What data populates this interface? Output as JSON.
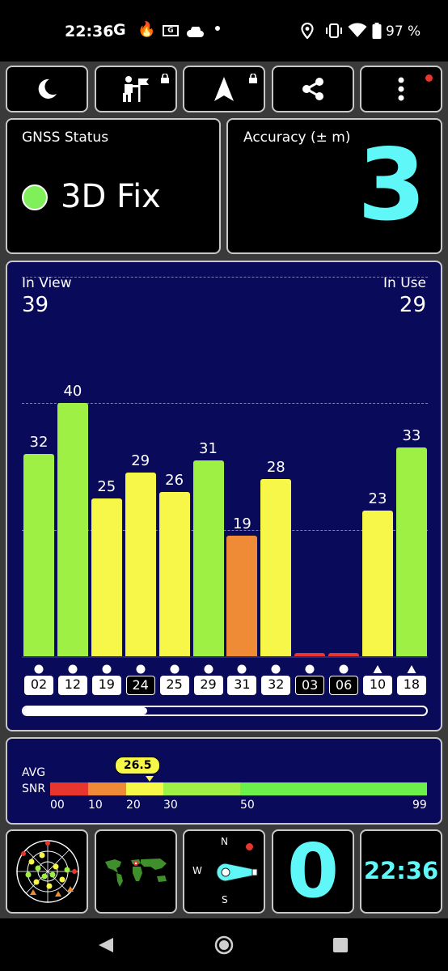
{
  "status_bar": {
    "time": "22:36",
    "battery": "97 %",
    "icons": [
      "google-icon",
      "fire-icon",
      "gmail-icon",
      "cloud-icon",
      "dot-icon",
      "location-icon",
      "vibrate-icon",
      "wifi-icon",
      "battery-icon"
    ]
  },
  "toolbar": {
    "buttons": [
      {
        "icon": "moon-icon",
        "locked": false,
        "badge": false
      },
      {
        "icon": "hiker-icon",
        "locked": true,
        "badge": false
      },
      {
        "icon": "navigation-arrow-icon",
        "locked": true,
        "badge": false
      },
      {
        "icon": "share-icon",
        "locked": false,
        "badge": false
      },
      {
        "icon": "more-vertical-icon",
        "locked": false,
        "badge": true
      }
    ]
  },
  "gnss_status": {
    "label": "GNSS Status",
    "value": "3D Fix",
    "color": "#7ff05a"
  },
  "accuracy": {
    "label": "Accuracy (± m)",
    "value": "3",
    "color": "#5ff7f7"
  },
  "satellites": {
    "in_view_label": "In View",
    "in_view": "39",
    "in_use_label": "In Use",
    "in_use": "29"
  },
  "chart_data": {
    "type": "bar",
    "categories": [
      "02",
      "12",
      "19",
      "24",
      "25",
      "29",
      "31",
      "32",
      "03",
      "06",
      "10",
      "18"
    ],
    "values": [
      32,
      40,
      25,
      29,
      26,
      31,
      19,
      28,
      0,
      0,
      23,
      33
    ],
    "labels": [
      "32",
      "40",
      "25",
      "29",
      "26",
      "31",
      "19",
      "28",
      "",
      "",
      "23",
      "33"
    ],
    "colors": [
      "#9ef045",
      "#9ef045",
      "#f7f74a",
      "#f7f74a",
      "#f7f74a",
      "#9ef045",
      "#ef8b36",
      "#f7f74a",
      "#e8352e",
      "#e8352e",
      "#f7f74a",
      "#9ef045"
    ],
    "in_use": [
      true,
      true,
      true,
      false,
      true,
      true,
      true,
      true,
      false,
      false,
      true,
      true
    ],
    "markers": [
      "circle",
      "circle",
      "circle",
      "circle",
      "circle",
      "circle",
      "circle",
      "circle",
      "circle",
      "circle",
      "triangle",
      "triangle"
    ],
    "ylim": [
      0,
      60
    ],
    "grid": true
  },
  "snr": {
    "avg_label": "AVG",
    "snr_label": "SNR",
    "avg_value": "26.5",
    "avg": 26.5,
    "ticks": [
      "00",
      "10",
      "20",
      "30",
      "50",
      "99"
    ],
    "segments": [
      {
        "from": 0,
        "to": 10,
        "color": "#e8352e"
      },
      {
        "from": 10,
        "to": 20,
        "color": "#ef8b36"
      },
      {
        "from": 20,
        "to": 30,
        "color": "#f7f74a"
      },
      {
        "from": 30,
        "to": 50,
        "color": "#9ef045"
      },
      {
        "from": 50,
        "to": 99,
        "color": "#6cf04a"
      }
    ]
  },
  "bottom_tiles": {
    "radar_icon": "sky-plot-icon",
    "map_icon": "world-map-icon",
    "compass": {
      "n": "N",
      "s": "S",
      "w": "W"
    },
    "speed": "0",
    "clock": "22:36"
  }
}
